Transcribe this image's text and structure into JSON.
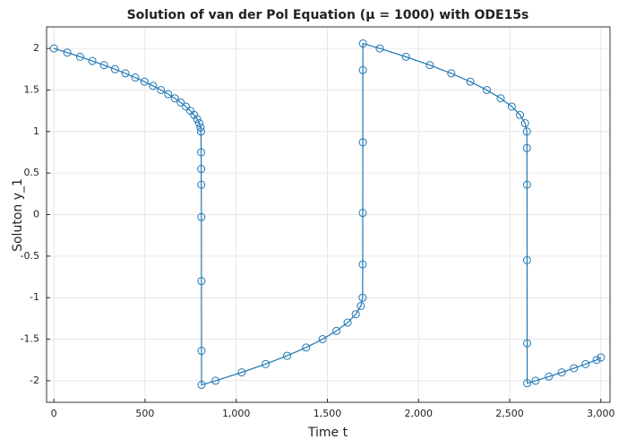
{
  "chart_data": {
    "type": "line",
    "title": "Solution of van der Pol Equation (μ = 1000) with ODE15s",
    "x_label": "Time t",
    "y_label": "Soluton y_1",
    "x": [
      0,
      73.5,
      143.8,
      210.8,
      274.7,
      335.3,
      392.5,
      446.4,
      496.9,
      543.9,
      587.4,
      627.2,
      663.4,
      695.8,
      724.3,
      748.8,
      769.2,
      785.4,
      797.2,
      804.4,
      806.9,
      807.6,
      808.1,
      808.5,
      808.9,
      809.3,
      809.7,
      810,
      886.5,
      1030.3,
      1161.2,
      1279,
      1383.4,
      1473.9,
      1549.9,
      1610.8,
      1655.7,
      1683.7,
      1693.4,
      1693.8,
      1694.1,
      1694.4,
      1694.7,
      1695,
      1787.2,
      1930.9,
      2061.9,
      2179.7,
      2284.1,
      2374.6,
      2450.6,
      2511.5,
      2556.4,
      2584.4,
      2594.1,
      2594.5,
      2594.9,
      2595.3,
      2595.6,
      2596,
      2641.5,
      2715,
      2785.3,
      2852.4,
      2916.2,
      2976.8,
      3000
    ],
    "series": [
      {
        "color": "#1f77b4",
        "marker": "open-circle",
        "values": [
          2,
          1.95,
          1.9,
          1.85,
          1.8,
          1.75,
          1.7,
          1.65,
          1.6,
          1.55,
          1.5,
          1.45,
          1.4,
          1.35,
          1.3,
          1.25,
          1.2,
          1.15,
          1.1,
          1.05,
          1.0,
          0.75,
          0.55,
          0.36,
          -0.03,
          -0.8,
          -1.64,
          -2.05,
          -2,
          -1.9,
          -1.8,
          -1.7,
          -1.6,
          -1.5,
          -1.4,
          -1.3,
          -1.2,
          -1.1,
          -1.0,
          -0.6,
          0.02,
          0.87,
          1.74,
          2.06,
          2,
          1.9,
          1.8,
          1.7,
          1.6,
          1.5,
          1.4,
          1.3,
          1.2,
          1.1,
          1.0,
          0.8,
          0.36,
          -0.55,
          -1.55,
          -2.03,
          -2,
          -1.95,
          -1.9,
          -1.85,
          -1.8,
          -1.75,
          -1.72
        ]
      }
    ],
    "xlim": [
      -40,
      3050
    ],
    "ylim": [
      -2.26,
      2.26
    ],
    "xticks": [
      0,
      500,
      {
        "value": 1000,
        "label": "1,000"
      },
      {
        "value": 1500,
        "label": "1,500"
      },
      {
        "value": 2000,
        "label": "2,000"
      },
      {
        "value": 2500,
        "label": "2,500"
      },
      {
        "value": 3000,
        "label": "3,000"
      }
    ],
    "yticks": [
      -2,
      -1.5,
      -1,
      -0.5,
      0,
      0.5,
      1,
      1.5,
      2
    ],
    "grid": true
  }
}
